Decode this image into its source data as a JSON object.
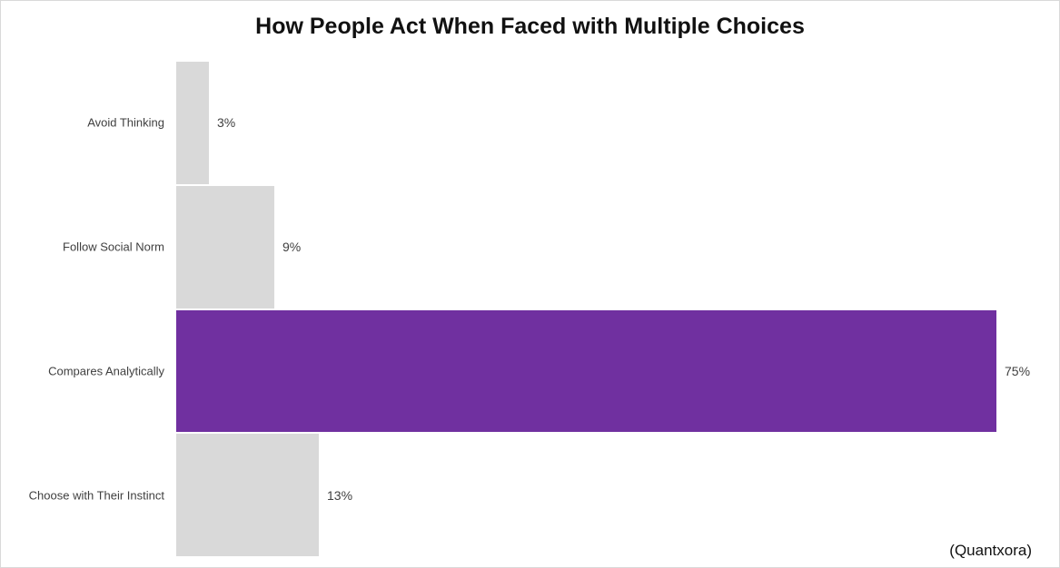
{
  "chart_data": {
    "type": "bar",
    "orientation": "horizontal",
    "title": "How People Act When Faced with Multiple Choices",
    "categories": [
      "Avoid Thinking",
      "Follow Social Norm",
      "Compares Analytically",
      "Choose with Their Instinct"
    ],
    "values": [
      3,
      9,
      75,
      13
    ],
    "value_labels": [
      "3%",
      "9%",
      "75%",
      "13%"
    ],
    "bar_colors": [
      "#d9d9d9",
      "#d9d9d9",
      "#7030a0",
      "#d9d9d9"
    ],
    "highlight_color": "#7030a0",
    "default_bar_color": "#d9d9d9",
    "xlim": [
      0,
      80
    ],
    "grid": false,
    "legend": false,
    "source": "(Quantxora)"
  }
}
